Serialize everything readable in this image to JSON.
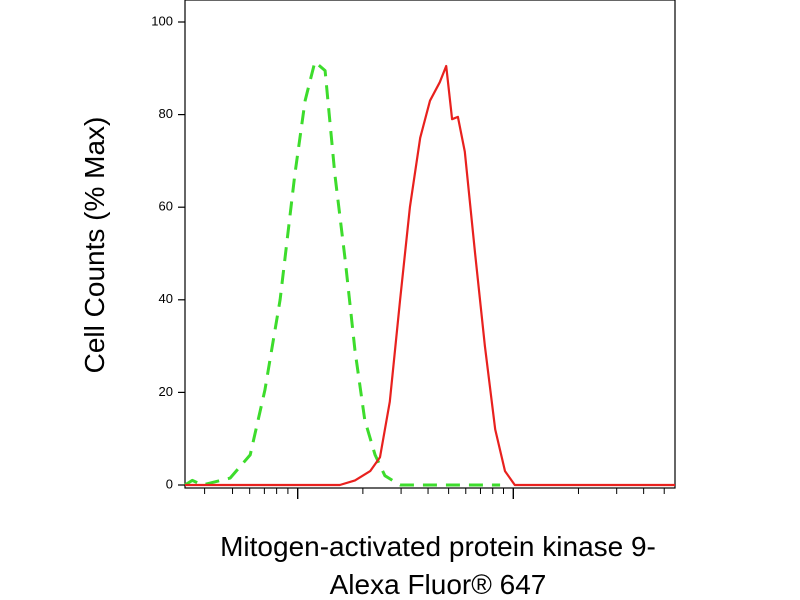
{
  "chart_data": {
    "type": "line",
    "y_label": "Cell Counts (% Max)",
    "x_label": [
      "Mitogen-activated protein kinase 9-",
      "Alexa Fluor® 647"
    ],
    "xscale": "log",
    "xlim": [
      0,
      100
    ],
    "xticks": [
      23,
      67
    ],
    "xminorticks": [
      4.0,
      9.7,
      13.2,
      16.2,
      18.7,
      21.0,
      36.3,
      44.1,
      49.6,
      53.8,
      57.3,
      60.3,
      62.8,
      65.0,
      80.3,
      88.1,
      93.6,
      97.8
    ],
    "ylim": [
      0,
      100
    ],
    "yticks": [
      0,
      20,
      40,
      60,
      80,
      100
    ],
    "series": [
      {
        "color": "#3ddc2c",
        "dashed": true,
        "x": [
          0,
          1.5,
          3.5,
          9.2,
          13.3,
          16.3,
          19.4,
          22.4,
          24.5,
          26.5,
          28.6,
          30.6,
          32.7,
          34.7,
          36.7,
          38.8,
          40.8,
          43.9,
          64.3
        ],
        "values": [
          0,
          1,
          0,
          1.5,
          6.5,
          20.5,
          40,
          67,
          83,
          91.4,
          89.5,
          67,
          48.6,
          29,
          14,
          6.5,
          2,
          0,
          0
        ]
      },
      {
        "color": "#e8211e",
        "dashed": false,
        "x": [
          0,
          31.6,
          34.7,
          37.8,
          39.8,
          41.8,
          43.9,
          45.9,
          48.0,
          50.0,
          52.0,
          53.3,
          54.5,
          55.7,
          57.1,
          59.2,
          61.2,
          63.3,
          65.3,
          67.3,
          100
        ],
        "values": [
          0,
          0,
          1,
          3,
          6,
          18,
          40,
          60,
          75,
          83,
          87,
          90.5,
          79,
          79.5,
          72,
          50,
          30,
          12,
          3,
          0,
          0
        ]
      }
    ]
  }
}
